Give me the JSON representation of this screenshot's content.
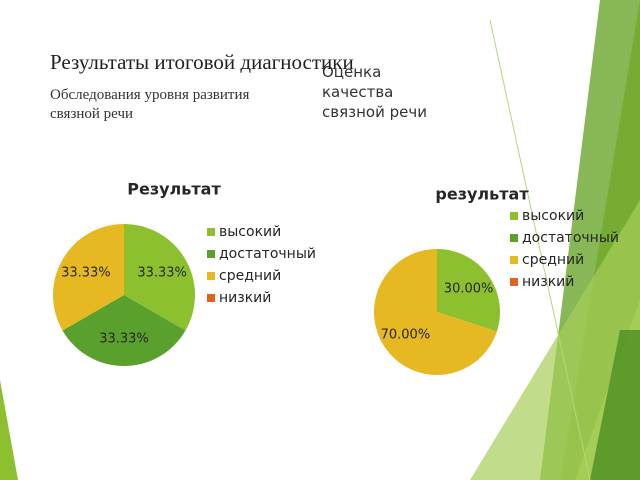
{
  "slide": {
    "title": "Результаты итоговой диагностики",
    "subtitle": "Обследования уровня развития связной речи",
    "right_text": "Оценка качества связной речи"
  },
  "chart_data": [
    {
      "type": "pie",
      "title": "Результат",
      "categories": [
        "высокий",
        "достаточный",
        "средний",
        "низкий"
      ],
      "values": [
        33.33,
        33.33,
        33.33,
        0
      ],
      "value_labels": [
        "33.33%",
        "33.33%",
        "33.33%",
        null
      ],
      "colors": [
        "#8dc02e",
        "#5aa02c",
        "#e6b923",
        "#e2621f"
      ],
      "legend": "right"
    },
    {
      "type": "pie",
      "title": "результат",
      "categories": [
        "высокий",
        "достаточный",
        "средний",
        "низкий"
      ],
      "values": [
        30,
        0,
        70,
        0
      ],
      "value_labels": [
        "30.00%",
        null,
        "70.00%",
        null
      ],
      "colors": [
        "#8dc02e",
        "#5aa02c",
        "#e6b923",
        "#e2621f"
      ],
      "legend": "right"
    }
  ]
}
